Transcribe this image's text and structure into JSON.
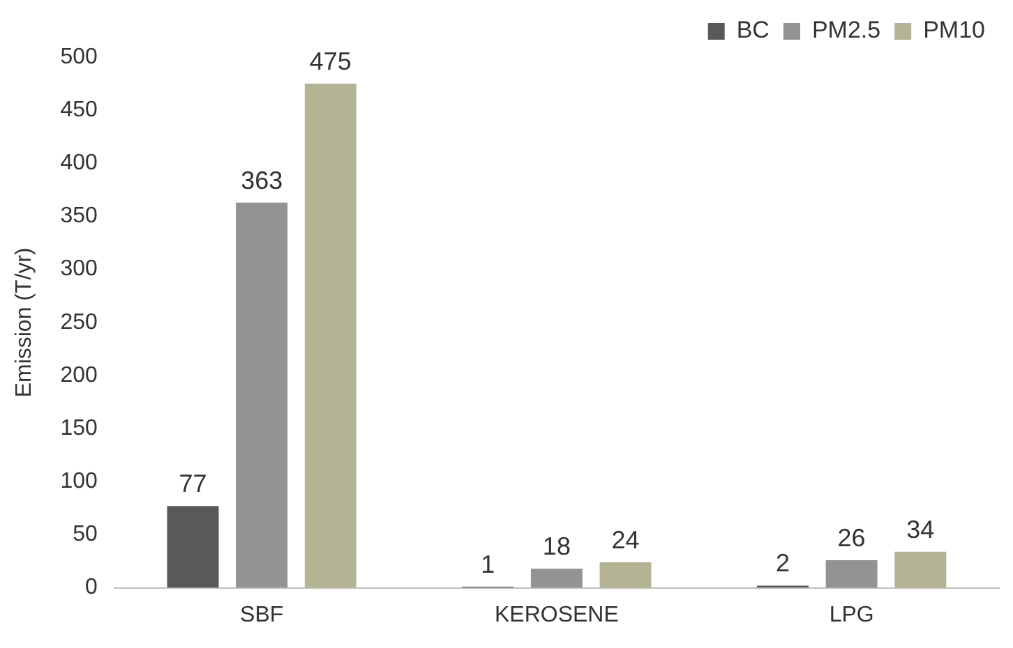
{
  "chart_data": {
    "type": "bar",
    "ylabel": "Emission (T/yr)",
    "categories": [
      "SBF",
      "KEROSENE",
      "LPG"
    ],
    "series": [
      {
        "name": "BC",
        "color": "#595959",
        "values": [
          77,
          1,
          2
        ]
      },
      {
        "name": "PM2.5",
        "color": "#939393",
        "values": [
          363,
          18,
          26
        ]
      },
      {
        "name": "PM10",
        "color": "#b4b495",
        "values": [
          475,
          24,
          34
        ]
      }
    ],
    "ylim": [
      0,
      500
    ],
    "yticks": [
      0,
      50,
      100,
      150,
      200,
      250,
      300,
      350,
      400,
      450,
      500
    ],
    "grid": false,
    "legend": "top right",
    "data_labels": true
  }
}
